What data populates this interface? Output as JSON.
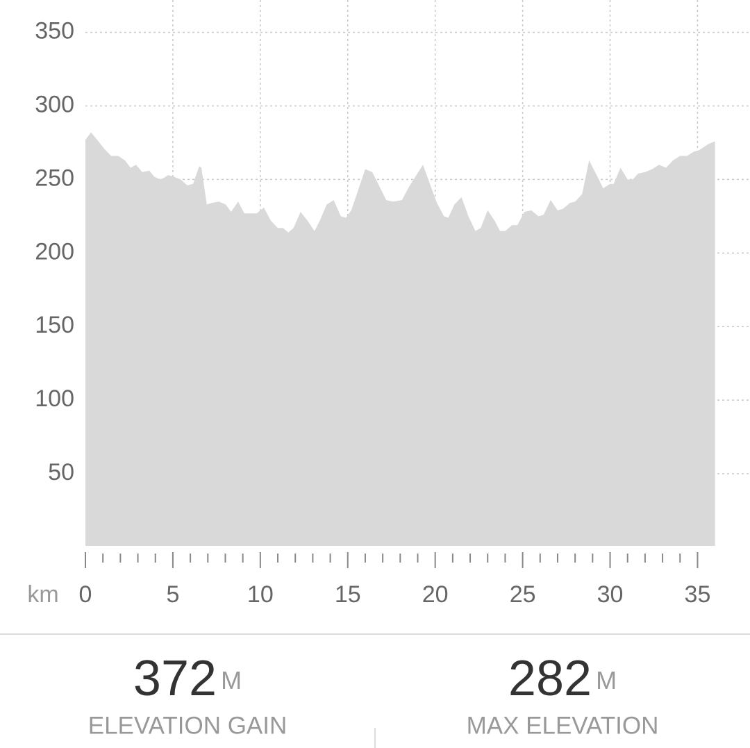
{
  "chart_data": {
    "type": "area",
    "x_label": "km",
    "x": [
      0,
      0.32,
      0.67,
      1.07,
      1.47,
      1.87,
      2.26,
      2.58,
      2.9,
      3.25,
      3.65,
      3.93,
      4.25,
      4.48,
      4.72,
      5.04,
      5.44,
      5.83,
      6.15,
      6.51,
      6.63,
      6.94,
      7.22,
      7.62,
      8.02,
      8.33,
      8.73,
      9.09,
      9.4,
      9.8,
      10.2,
      10.6,
      11.0,
      11.3,
      11.6,
      11.9,
      12.3,
      12.7,
      13.1,
      13.4,
      13.8,
      14.2,
      14.6,
      14.9,
      15.2,
      15.6,
      16.0,
      16.4,
      16.7,
      17.2,
      17.6,
      18.1,
      18.5,
      19.3,
      19.7,
      20.1,
      20.5,
      20.75,
      21.1,
      21.5,
      21.9,
      22.3,
      22.6,
      23.0,
      23.4,
      23.7,
      24.0,
      24.4,
      24.7,
      25.1,
      25.5,
      25.9,
      26.2,
      26.6,
      27.0,
      27.3,
      27.7,
      28.0,
      28.4,
      28.8,
      29.1,
      29.4,
      29.6,
      30.0,
      30.2,
      30.6,
      31.0,
      31.3,
      31.6,
      32.0,
      32.4,
      32.8,
      33.2,
      33.6,
      34.0,
      34.4,
      34.8,
      35.1,
      35.6,
      36.0
    ],
    "values": [
      277,
      282,
      277,
      271,
      266,
      266,
      263,
      258,
      260,
      255,
      256,
      252,
      250,
      251,
      253,
      252,
      250,
      246,
      247,
      259,
      258,
      233,
      234,
      235,
      233,
      228,
      235,
      227,
      227,
      227,
      231,
      222,
      217,
      217,
      214,
      217,
      228,
      222,
      215,
      222,
      233,
      236,
      225,
      224,
      229,
      243,
      257,
      255,
      248,
      236,
      235,
      236,
      245,
      260,
      247,
      234,
      225,
      224,
      233,
      238,
      225,
      215,
      217,
      229,
      222,
      215,
      215,
      219,
      219,
      228,
      229,
      225,
      226,
      236,
      229,
      230,
      234,
      235,
      240,
      263,
      256,
      249,
      244,
      247,
      247,
      258,
      250,
      250,
      254,
      255,
      257,
      260,
      258,
      263,
      266,
      266,
      269,
      270,
      274,
      276
    ],
    "color": "#d9d9d9",
    "xlim": [
      0,
      38
    ],
    "xticks": [
      0,
      5,
      10,
      15,
      20,
      25,
      30,
      35
    ],
    "xminorticks": [
      1,
      2,
      3,
      4,
      6,
      7,
      8,
      9,
      11,
      12,
      13,
      14,
      16,
      17,
      18,
      19,
      21,
      22,
      23,
      24,
      26,
      27,
      28,
      29,
      31,
      32,
      33,
      34
    ],
    "ylim": [
      0,
      372
    ],
    "yticks": [
      50,
      100,
      150,
      200,
      250,
      300,
      350
    ],
    "grid": true
  },
  "stats": [
    {
      "value": 372,
      "unit": "M",
      "label": "ELEVATION GAIN"
    },
    {
      "value": 282,
      "unit": "M",
      "label": "MAX ELEVATION"
    }
  ]
}
